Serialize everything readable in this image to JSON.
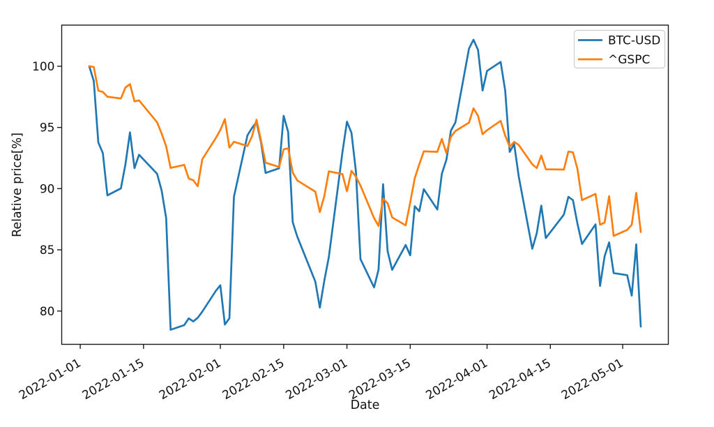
{
  "figure": {
    "background": "#ffffff"
  },
  "chart_data": {
    "type": "line",
    "title": "",
    "xlabel": "Date",
    "ylabel": "Relative price[%]",
    "grid": false,
    "legend": {
      "position": "upper right",
      "entries": [
        "BTC-USD",
        "^GSPC"
      ]
    },
    "x_epoch": "2022-01-01",
    "xlim_days": [
      -4.1,
      130.1
    ],
    "ylim": [
      77.28,
      103.36
    ],
    "y_ticks": [
      80,
      85,
      90,
      95,
      100
    ],
    "x_tick_labels": [
      "2022-01-01",
      "2022-01-15",
      "2022-02-01",
      "2022-02-15",
      "2022-03-01",
      "2022-03-15",
      "2022-04-01",
      "2022-04-15",
      "2022-05-01"
    ],
    "x": [
      "2022-01-03",
      "2022-01-04",
      "2022-01-05",
      "2022-01-06",
      "2022-01-07",
      "2022-01-10",
      "2022-01-11",
      "2022-01-12",
      "2022-01-13",
      "2022-01-14",
      "2022-01-18",
      "2022-01-19",
      "2022-01-20",
      "2022-01-21",
      "2022-01-24",
      "2022-01-25",
      "2022-01-26",
      "2022-01-27",
      "2022-01-28",
      "2022-01-31",
      "2022-02-01",
      "2022-02-02",
      "2022-02-03",
      "2022-02-04",
      "2022-02-07",
      "2022-02-08",
      "2022-02-09",
      "2022-02-10",
      "2022-02-11",
      "2022-02-14",
      "2022-02-15",
      "2022-02-16",
      "2022-02-17",
      "2022-02-18",
      "2022-02-22",
      "2022-02-23",
      "2022-02-24",
      "2022-02-25",
      "2022-02-28",
      "2022-03-01",
      "2022-03-02",
      "2022-03-03",
      "2022-03-04",
      "2022-03-07",
      "2022-03-08",
      "2022-03-09",
      "2022-03-10",
      "2022-03-11",
      "2022-03-14",
      "2022-03-15",
      "2022-03-16",
      "2022-03-17",
      "2022-03-18",
      "2022-03-21",
      "2022-03-22",
      "2022-03-23",
      "2022-03-24",
      "2022-03-25",
      "2022-03-28",
      "2022-03-29",
      "2022-03-30",
      "2022-03-31",
      "2022-04-01",
      "2022-04-04",
      "2022-04-05",
      "2022-04-06",
      "2022-04-07",
      "2022-04-08",
      "2022-04-11",
      "2022-04-12",
      "2022-04-13",
      "2022-04-14",
      "2022-04-18",
      "2022-04-19",
      "2022-04-20",
      "2022-04-21",
      "2022-04-22",
      "2022-04-25",
      "2022-04-26",
      "2022-04-27",
      "2022-04-28",
      "2022-04-29",
      "2022-05-02",
      "2022-05-03",
      "2022-05-04",
      "2022-05-05"
    ],
    "series": [
      {
        "name": "BTC-USD",
        "color": "#1f77b4",
        "values": [
          100.0,
          98.79,
          93.78,
          92.9,
          89.45,
          90.02,
          91.99,
          94.6,
          91.68,
          92.77,
          91.21,
          89.85,
          87.6,
          78.47,
          78.85,
          79.4,
          79.15,
          79.45,
          79.95,
          81.65,
          82.1,
          78.9,
          79.4,
          89.33,
          94.36,
          94.96,
          95.44,
          93.77,
          91.28,
          91.66,
          95.95,
          94.62,
          87.26,
          86.09,
          82.41,
          80.28,
          82.51,
          84.41,
          92.97,
          95.47,
          94.55,
          91.37,
          84.24,
          81.93,
          83.38,
          90.36,
          84.89,
          83.36,
          85.39,
          84.55,
          88.56,
          88.15,
          89.96,
          88.3,
          91.22,
          92.36,
          94.74,
          95.42,
          101.44,
          102.17,
          101.33,
          98.02,
          99.62,
          100.35,
          98.03,
          93.0,
          93.64,
          91.01,
          85.09,
          86.36,
          88.61,
          85.96,
          87.88,
          89.33,
          89.06,
          87.13,
          85.48,
          87.08,
          82.05,
          84.47,
          85.61,
          83.1,
          82.93,
          81.26,
          85.45,
          78.73
        ]
      },
      {
        "name": "^GSPC",
        "color": "#ff7f0e",
        "values": [
          100.0,
          99.94,
          98.0,
          97.9,
          97.51,
          97.37,
          98.26,
          98.54,
          97.13,
          97.21,
          95.42,
          94.5,
          93.46,
          91.69,
          91.94,
          90.82,
          90.69,
          90.2,
          92.4,
          94.14,
          94.79,
          95.68,
          93.35,
          93.83,
          93.48,
          94.27,
          95.63,
          93.9,
          92.12,
          91.77,
          93.21,
          93.3,
          91.32,
          90.67,
          89.75,
          88.09,
          89.41,
          91.41,
          91.19,
          89.78,
          91.45,
          90.97,
          90.25,
          87.59,
          86.95,
          89.19,
          88.8,
          87.65,
          87.0,
          88.86,
          90.85,
          91.98,
          93.05,
          93.01,
          94.06,
          92.9,
          94.24,
          94.71,
          95.39,
          96.56,
          95.95,
          94.45,
          94.77,
          95.54,
          94.34,
          93.42,
          93.82,
          93.57,
          91.99,
          91.68,
          92.7,
          91.58,
          91.56,
          93.03,
          92.97,
          91.6,
          89.06,
          89.57,
          87.05,
          87.23,
          89.39,
          86.14,
          86.63,
          87.05,
          89.65,
          86.45
        ]
      }
    ]
  }
}
